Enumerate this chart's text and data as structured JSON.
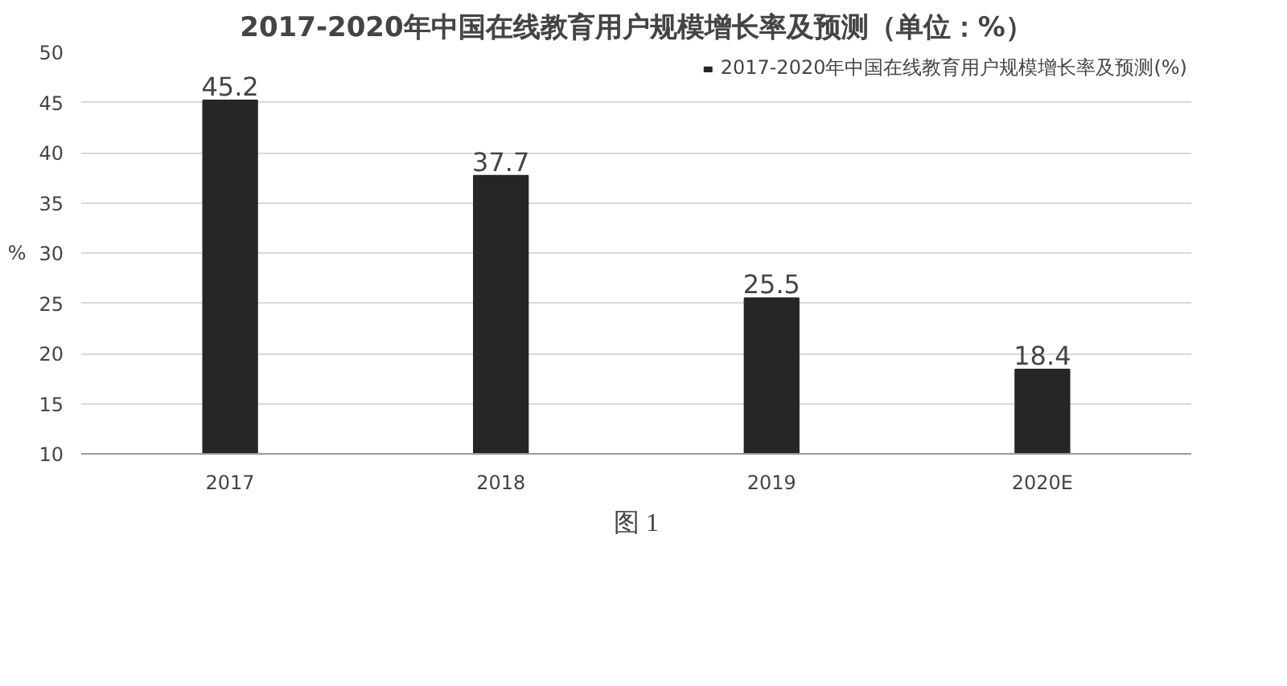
{
  "chart_data": {
    "type": "bar",
    "title": "2017-2020年中国在线教育用户规模增长率及预测（单位：%）",
    "ylabel": "%",
    "categories": [
      "2017",
      "2018",
      "2019",
      "2020E"
    ],
    "series": [
      {
        "name": "2017-2020年中国在线教育用户规模增长率及预测(%)",
        "color": "#262626",
        "values": [
          45.2,
          37.7,
          25.5,
          18.4
        ]
      }
    ],
    "ylim": [
      10,
      50
    ],
    "yticks": [
      10,
      15,
      20,
      25,
      30,
      35,
      40,
      45,
      50
    ],
    "grid": "y",
    "legend": "top right",
    "data_labels": true,
    "annotations": [
      "图 1"
    ]
  }
}
